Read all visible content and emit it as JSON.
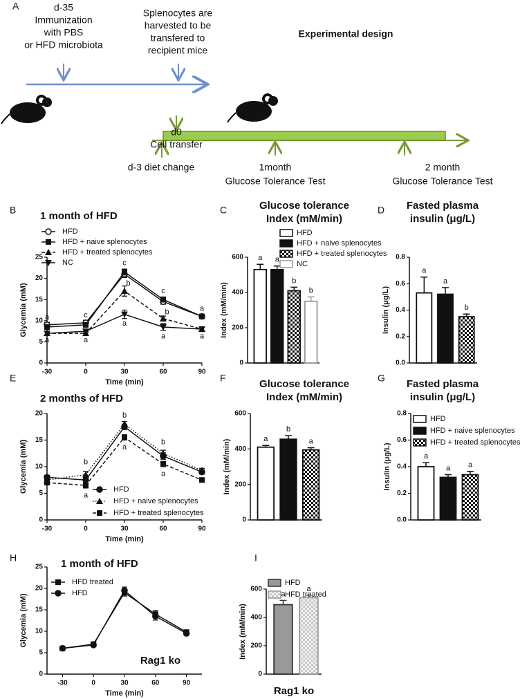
{
  "design": {
    "panel": "A",
    "title": "Experimental design",
    "immunization": [
      "d-35",
      "Immunization",
      "with PBS",
      "or HFD microbiota"
    ],
    "harvest": [
      "Splenocytes are",
      "harvested to be",
      "transfered to",
      "recipient mice"
    ],
    "transfer": [
      "d0",
      "Cell transfer"
    ],
    "diet": "d-3 diet change",
    "test1": [
      "1month",
      "Glucose Tolerance Test"
    ],
    "test2": [
      "2 month",
      "Glucose Tolerance Test"
    ]
  },
  "chart_data": [
    {
      "type": "line",
      "panel": "B",
      "title": [
        "1 month of HFD"
      ],
      "xlabel": "Time (min)",
      "ylabel": "Glycemia (mM)",
      "x": [
        -30,
        0,
        30,
        60,
        90
      ],
      "xlim": [
        -30,
        90
      ],
      "xticks": [
        -30,
        0,
        30,
        60,
        90
      ],
      "ylim": [
        0,
        25
      ],
      "yticks": [
        0,
        5,
        10,
        15,
        20,
        25
      ],
      "series": [
        {
          "name": "HFD",
          "color": "#111111",
          "marker": "circle-open",
          "dash": "solid",
          "values": [
            9,
            9.5,
            21,
            14.5,
            11
          ],
          "errors": [
            0.6,
            0.6,
            0.8,
            0.6,
            0.5
          ]
        },
        {
          "name": "HFD + naive splenocytes",
          "color": "#111111",
          "marker": "square",
          "dash": "solid",
          "values": [
            8.5,
            9,
            21.5,
            15,
            11
          ],
          "errors": [
            0.5,
            0.5,
            0.7,
            0.6,
            0.5
          ]
        },
        {
          "name": "HFD + treated splenocytes",
          "color": "#111111",
          "marker": "triangle",
          "dash": "dashed",
          "values": [
            7,
            7,
            17,
            10.5,
            8
          ],
          "errors": [
            0.4,
            0.4,
            1.2,
            0.6,
            0.4
          ]
        },
        {
          "name": "NC",
          "color": "#111111",
          "marker": "triangle-down",
          "dash": "solid",
          "values": [
            7,
            7.5,
            11.5,
            8.5,
            8
          ],
          "errors": [
            0.4,
            0.4,
            1,
            0.8,
            0.4
          ]
        }
      ],
      "annotations": [
        {
          "text": "a",
          "x": -30,
          "y": 10.8
        },
        {
          "text": "a",
          "x": -30,
          "y": 5.4
        },
        {
          "text": "c",
          "x": 0,
          "y": 11.3
        },
        {
          "text": "a",
          "x": 0,
          "y": 5.4
        },
        {
          "text": "c",
          "x": 30,
          "y": 23.6
        },
        {
          "text": "b",
          "x": 33,
          "y": 18.8
        },
        {
          "text": "a",
          "x": 30,
          "y": 9.3
        },
        {
          "text": "c",
          "x": 60,
          "y": 17
        },
        {
          "text": "b",
          "x": 63,
          "y": 12
        },
        {
          "text": "a",
          "x": 60,
          "y": 6.3
        },
        {
          "text": "a",
          "x": 90,
          "y": 12.8
        },
        {
          "text": "a",
          "x": 90,
          "y": 6.3
        }
      ]
    },
    {
      "type": "bar",
      "panel": "C",
      "title": [
        "Glucose tolerance",
        "Index (mM/min)"
      ],
      "ylabel": "Index (mM/min)",
      "ylim": [
        0,
        600
      ],
      "yticks": [
        0,
        200,
        400,
        600
      ],
      "series": [
        {
          "name": "HFD",
          "color": "#ffffff",
          "edge": "#111111",
          "values": [
            530
          ],
          "errors": [
            30
          ]
        },
        {
          "name": "HFD + naive splenocytes",
          "color": "#111111",
          "edge": "#111111",
          "values": [
            530
          ],
          "errors": [
            20
          ]
        },
        {
          "name": "HFD + treated splenocytes",
          "color": "#111111",
          "pattern": "checker",
          "edge": "#111111",
          "values": [
            410
          ],
          "errors": [
            20
          ]
        },
        {
          "name": "NC",
          "color": "#ffffff",
          "edge": "#999999",
          "values": [
            350
          ],
          "errors": [
            25
          ]
        }
      ],
      "annotations": [
        "a",
        "a",
        "b",
        "b"
      ]
    },
    {
      "type": "bar",
      "panel": "D",
      "title": [
        "Fasted plasma",
        "insulin (μg/L)"
      ],
      "ylabel": "Insulin (μg/L)",
      "ylim": [
        0,
        0.8
      ],
      "yticks": [
        {
          "value": 0,
          "label": "0.0"
        },
        0.2,
        0.4,
        0.6,
        0.8
      ],
      "series": [
        {
          "color": "#ffffff",
          "edge": "#111111",
          "values": [
            0.53
          ],
          "errors": [
            0.12
          ]
        },
        {
          "color": "#111111",
          "edge": "#111111",
          "values": [
            0.52
          ],
          "errors": [
            0.05
          ]
        },
        {
          "color": "#111111",
          "pattern": "checker",
          "edge": "#111111",
          "values": [
            0.35
          ],
          "errors": [
            0.02
          ]
        }
      ],
      "annotations": [
        "a",
        "a",
        "b"
      ]
    },
    {
      "type": "line",
      "panel": "E",
      "title": [
        "2 months of HFD"
      ],
      "xlabel": "Time (min)",
      "ylabel": "Glycemia (mM)",
      "x": [
        -30,
        0,
        30,
        60,
        90
      ],
      "xlim": [
        -30,
        90
      ],
      "xticks": [
        -30,
        0,
        30,
        60,
        90
      ],
      "ylim": [
        0,
        20
      ],
      "yticks": [
        0,
        5,
        10,
        15,
        20
      ],
      "series": [
        {
          "name": "HFD",
          "color": "#111111",
          "marker": "circle",
          "dash": "solid",
          "values": [
            8,
            7.5,
            17.5,
            12,
            9
          ],
          "errors": [
            0.4,
            0.5,
            0.5,
            0.6,
            0.4
          ]
        },
        {
          "name": "HFD + naive splenocytes",
          "color": "#111111",
          "marker": "triangle",
          "dash": "dotted",
          "values": [
            7.5,
            8.5,
            18,
            12.5,
            9.3
          ],
          "errors": [
            0.4,
            0.6,
            0.5,
            0.6,
            0.4
          ]
        },
        {
          "name": "HFD + treated splenocytes",
          "color": "#111111",
          "marker": "square",
          "dash": "dashed",
          "values": [
            7,
            6.5,
            15.5,
            10.5,
            7.5
          ],
          "errors": [
            0.4,
            0.5,
            0.5,
            0.5,
            0.3
          ]
        }
      ],
      "annotations": [
        {
          "text": "b",
          "x": 0,
          "y": 10.8
        },
        {
          "text": "a",
          "x": 0,
          "y": 4.6
        },
        {
          "text": "b",
          "x": 30,
          "y": 19.6
        },
        {
          "text": "a",
          "x": 30,
          "y": 13.6
        },
        {
          "text": "b",
          "x": 60,
          "y": 14.6
        },
        {
          "text": "a",
          "x": 60,
          "y": 8.6
        }
      ]
    },
    {
      "type": "bar",
      "panel": "F",
      "title": [
        "Glucose tolerance",
        "Index (mM/min)"
      ],
      "ylabel": "Index (mM/min)",
      "ylim": [
        0,
        600
      ],
      "yticks": [
        0,
        200,
        400,
        600
      ],
      "series": [
        {
          "color": "#ffffff",
          "edge": "#111111",
          "values": [
            410
          ],
          "errors": [
            10
          ]
        },
        {
          "color": "#111111",
          "edge": "#111111",
          "values": [
            455
          ],
          "errors": [
            20
          ]
        },
        {
          "color": "#111111",
          "pattern": "checker",
          "edge": "#111111",
          "values": [
            395
          ],
          "errors": [
            12
          ]
        }
      ],
      "annotations": [
        "a",
        "b",
        "a"
      ]
    },
    {
      "type": "bar",
      "panel": "G",
      "title": [
        "Fasted plasma",
        "insulin (μg/L)"
      ],
      "ylabel": "Insulin (μg/L)",
      "ylim": [
        0,
        0.8
      ],
      "yticks": [
        {
          "value": 0,
          "label": "0.0"
        },
        0.2,
        0.4,
        0.6,
        0.8
      ],
      "series": [
        {
          "name": "HFD",
          "color": "#ffffff",
          "edge": "#111111",
          "values": [
            0.4
          ],
          "errors": [
            0.03
          ]
        },
        {
          "name": "HFD + naive splenocytes",
          "color": "#111111",
          "edge": "#111111",
          "values": [
            0.32
          ],
          "errors": [
            0.02
          ]
        },
        {
          "name": "HFD + treated splenocytes",
          "color": "#111111",
          "pattern": "checker",
          "edge": "#111111",
          "values": [
            0.34
          ],
          "errors": [
            0.025
          ]
        }
      ],
      "annotations": [
        "a",
        "a",
        "a"
      ]
    },
    {
      "type": "line",
      "panel": "H",
      "title": [
        "1 month of HFD"
      ],
      "xlabel": "Time (min)",
      "ylabel": "Glycemia (mM)",
      "note": "Rag1 ko",
      "x": [
        -30,
        0,
        30,
        60,
        90
      ],
      "xlim": [
        -45,
        105
      ],
      "xticks": [
        -30,
        0,
        30,
        60,
        90
      ],
      "ylim": [
        0,
        25
      ],
      "yticks": [
        0,
        5,
        10,
        15,
        20,
        25
      ],
      "series": [
        {
          "name": "HFD treated",
          "color": "#111111",
          "marker": "square",
          "dash": "solid",
          "values": [
            6,
            7,
            19,
            14,
            9.8
          ],
          "errors": [
            0.3,
            0.4,
            0.8,
            0.9,
            0.4
          ]
        },
        {
          "name": "HFD",
          "color": "#111111",
          "marker": "circle",
          "dash": "solid",
          "values": [
            6,
            6.8,
            19.5,
            13.5,
            9.5
          ],
          "errors": [
            0.3,
            0.4,
            0.8,
            0.9,
            0.4
          ]
        }
      ]
    },
    {
      "type": "bar",
      "panel": "I",
      "ylabel": "Index (mM/min)",
      "note": "Rag1 ko",
      "ylim": [
        0,
        600
      ],
      "yticks": [
        0,
        200,
        400,
        600
      ],
      "series": [
        {
          "name": "HFD",
          "color": "#999999",
          "edge": "#333333",
          "values": [
            490
          ],
          "errors": [
            30
          ]
        },
        {
          "name": "HFD treated",
          "color": "#cccccc",
          "pattern": "checker-light",
          "edge": "#999999",
          "values": [
            540
          ],
          "errors": [
            15
          ]
        }
      ],
      "annotations": [
        "a",
        "a"
      ]
    }
  ]
}
